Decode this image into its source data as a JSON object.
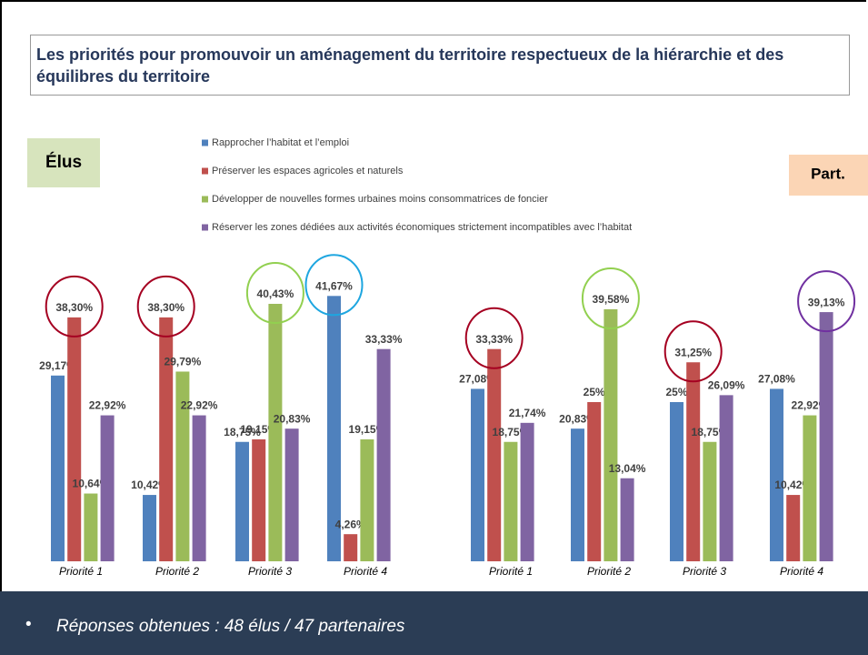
{
  "title": "Les priorités pour promouvoir un aménagement du territoire respectueux de la hiérarchie et des équilibres du territoire",
  "footer": "Réponses obtenues : 48 élus / 47 partenaires",
  "chart_data": [
    {
      "type": "bar",
      "label": "Élus",
      "categories": [
        "Priorité 1",
        "Priorité 2",
        "Priorité 3",
        "Priorité 4"
      ],
      "series": [
        {
          "name": "Rapprocher l’habitat et l’emploi",
          "color": "#4f81bd",
          "values": [
            29.17,
            10.42,
            18.75,
            41.67
          ],
          "value_labels": [
            "29,17%",
            "10,42%",
            "18,75%",
            "41,67%"
          ]
        },
        {
          "name": "Préserver les espaces agricoles et naturels",
          "color": "#c0504d",
          "values": [
            38.3,
            38.3,
            19.15,
            4.26
          ],
          "value_labels": [
            "38,30%",
            "38,30%",
            "19,15%",
            "4,26%"
          ]
        },
        {
          "name": "Développer de nouvelles formes urbaines moins consommatrices de foncier",
          "color": "#9bbb59",
          "values": [
            10.64,
            29.79,
            40.43,
            19.15
          ],
          "value_labels": [
            "10,64%",
            "29,79%",
            "40,43%",
            "19,15%"
          ]
        },
        {
          "name": "Réserver les zones dédiées aux activités économiques strictement incompatibles avec l’habitat",
          "color": "#8064a2",
          "values": [
            22.92,
            22.92,
            20.83,
            33.33
          ],
          "value_labels": [
            "22,92%",
            "22,92%",
            "20,83%",
            "33,33%"
          ]
        }
      ],
      "highlight": [
        1,
        1,
        2,
        0
      ],
      "highlight_colors": [
        "#a50021",
        "#a50021",
        "#92d050",
        "#1ea6e0"
      ]
    },
    {
      "type": "bar",
      "label": "Part.",
      "categories": [
        "Priorité 1",
        "Priorité 2",
        "Priorité 3",
        "Priorité 4"
      ],
      "series": [
        {
          "color": "#4f81bd",
          "values": [
            27.08,
            20.83,
            25,
            27.08
          ],
          "value_labels": [
            "27,08%",
            "20,83%",
            "25%",
            "27,08%"
          ]
        },
        {
          "color": "#c0504d",
          "values": [
            33.33,
            25,
            31.25,
            10.42
          ],
          "value_labels": [
            "33,33%",
            "25%",
            "31,25%",
            "10,42%"
          ]
        },
        {
          "color": "#9bbb59",
          "values": [
            18.75,
            39.58,
            18.75,
            22.92
          ],
          "value_labels": [
            "18,75%",
            "39,58%",
            "18,75%",
            "22,92%"
          ]
        },
        {
          "color": "#8064a2",
          "values": [
            21.74,
            13.04,
            26.09,
            39.13
          ],
          "value_labels": [
            "21,74%",
            "13,04%",
            "26,09%",
            "39,13%"
          ]
        }
      ],
      "highlight": [
        1,
        2,
        1,
        3
      ],
      "highlight_colors": [
        "#a50021",
        "#92d050",
        "#a50021",
        "#7030a0"
      ]
    }
  ]
}
